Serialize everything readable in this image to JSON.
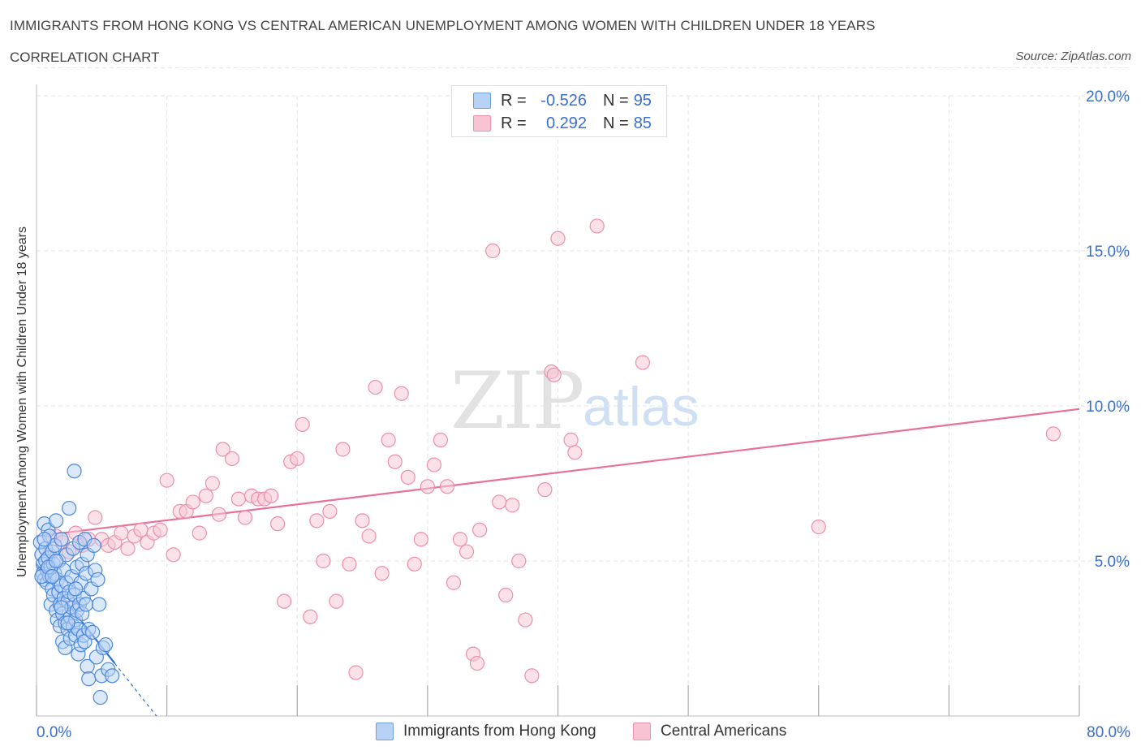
{
  "title": "IMMIGRANTS FROM HONG KONG VS CENTRAL AMERICAN UNEMPLOYMENT AMONG WOMEN WITH CHILDREN UNDER 18 YEARS",
  "subtitle": "CORRELATION CHART",
  "source": "Source: ZipAtlas.com",
  "watermark": {
    "zip": "ZIP",
    "atlas": "atlas"
  },
  "legend_top": [
    {
      "label": "R =",
      "r": "-0.526",
      "n_label": "N =",
      "n": "95",
      "fill": "#b8d2f5",
      "stroke": "#6f9fe0"
    },
    {
      "label": "R =",
      "r": "0.292",
      "n_label": "N =",
      "n": "85",
      "fill": "#f8c4d4",
      "stroke": "#ee93ae"
    }
  ],
  "colors": {
    "blue_fill": "#b8d2f5",
    "blue_stroke": "#4a88dc",
    "blue_line": "#2f6fd6",
    "pink_fill": "#f8c8d6",
    "pink_stroke": "#ec8fac",
    "pink_line": "#e8709a",
    "tick_color": "#3a6fd1",
    "grid": "#e4e4e4"
  },
  "chart_data": {
    "type": "scatter",
    "title": "IMMIGRANTS FROM HONG KONG VS CENTRAL AMERICAN UNEMPLOYMENT AMONG WOMEN WITH CHILDREN UNDER 18 YEARS",
    "xlabel": "",
    "ylabel": "Unemployment Among Women with Children Under 18 years",
    "xlim": [
      0,
      80
    ],
    "ylim": [
      0,
      20
    ],
    "x_tick_labels": [
      "0.0%",
      "80.0%"
    ],
    "y_ticks": [
      5,
      10,
      15,
      20
    ],
    "y_tick_labels": [
      "5.0%",
      "10.0%",
      "15.0%",
      "20.0%"
    ],
    "grid": true,
    "series": [
      {
        "name": "Immigrants from Hong Kong",
        "R": -0.526,
        "N": 95,
        "trend": {
          "x": [
            0,
            6.0
          ],
          "y": [
            4.9,
            1.7
          ]
        },
        "trend_dashed": {
          "x": [
            6.0,
            9.2
          ],
          "y": [
            1.7,
            0.0
          ]
        },
        "points": [
          [
            0.3,
            5.6
          ],
          [
            0.4,
            5.2
          ],
          [
            0.5,
            4.9
          ],
          [
            0.5,
            4.6
          ],
          [
            0.6,
            6.2
          ],
          [
            0.6,
            4.4
          ],
          [
            0.7,
            5.4
          ],
          [
            0.7,
            5.0
          ],
          [
            0.8,
            4.7
          ],
          [
            0.8,
            4.3
          ],
          [
            0.9,
            6.0
          ],
          [
            0.9,
            5.1
          ],
          [
            1.0,
            4.5
          ],
          [
            1.0,
            5.8
          ],
          [
            1.1,
            4.8
          ],
          [
            1.1,
            3.6
          ],
          [
            1.2,
            5.3
          ],
          [
            1.2,
            4.1
          ],
          [
            1.3,
            4.9
          ],
          [
            1.3,
            3.9
          ],
          [
            1.4,
            5.5
          ],
          [
            1.4,
            4.6
          ],
          [
            1.5,
            3.4
          ],
          [
            1.5,
            6.3
          ],
          [
            1.6,
            4.4
          ],
          [
            1.6,
            3.1
          ],
          [
            1.7,
            5.0
          ],
          [
            1.7,
            4.0
          ],
          [
            1.8,
            3.6
          ],
          [
            1.8,
            2.9
          ],
          [
            1.9,
            5.7
          ],
          [
            1.9,
            4.2
          ],
          [
            2.0,
            3.3
          ],
          [
            2.0,
            2.4
          ],
          [
            2.1,
            4.7
          ],
          [
            2.1,
            3.8
          ],
          [
            2.2,
            3.0
          ],
          [
            2.2,
            2.2
          ],
          [
            2.3,
            5.2
          ],
          [
            2.3,
            4.3
          ],
          [
            2.4,
            3.7
          ],
          [
            2.4,
            2.8
          ],
          [
            2.5,
            6.7
          ],
          [
            2.5,
            4.0
          ],
          [
            2.6,
            3.2
          ],
          [
            2.6,
            2.5
          ],
          [
            2.7,
            4.5
          ],
          [
            2.7,
            3.5
          ],
          [
            2.8,
            2.9
          ],
          [
            2.8,
            5.4
          ],
          [
            2.9,
            7.9
          ],
          [
            2.9,
            3.9
          ],
          [
            3.0,
            3.1
          ],
          [
            3.0,
            2.6
          ],
          [
            3.1,
            4.8
          ],
          [
            3.1,
            3.4
          ],
          [
            3.2,
            2.8
          ],
          [
            3.2,
            2.0
          ],
          [
            3.3,
            5.6
          ],
          [
            3.3,
            3.6
          ],
          [
            3.4,
            4.3
          ],
          [
            3.4,
            2.3
          ],
          [
            3.5,
            3.3
          ],
          [
            3.5,
            4.9
          ],
          [
            3.6,
            2.6
          ],
          [
            3.6,
            3.8
          ],
          [
            3.7,
            5.7
          ],
          [
            3.7,
            2.4
          ],
          [
            3.8,
            4.6
          ],
          [
            3.8,
            3.6
          ],
          [
            3.9,
            5.2
          ],
          [
            3.9,
            1.6
          ],
          [
            4.0,
            2.8
          ],
          [
            4.0,
            1.2
          ],
          [
            4.2,
            4.1
          ],
          [
            4.3,
            2.7
          ],
          [
            4.4,
            5.5
          ],
          [
            4.5,
            4.7
          ],
          [
            4.6,
            1.9
          ],
          [
            4.7,
            4.4
          ],
          [
            4.8,
            3.6
          ],
          [
            4.9,
            0.6
          ],
          [
            5.0,
            1.3
          ],
          [
            5.1,
            2.2
          ],
          [
            5.3,
            2.3
          ],
          [
            5.5,
            1.5
          ],
          [
            5.8,
            1.3
          ],
          [
            0.4,
            4.5
          ],
          [
            0.6,
            5.7
          ],
          [
            0.9,
            4.8
          ],
          [
            1.2,
            4.5
          ],
          [
            1.5,
            5.0
          ],
          [
            1.9,
            3.5
          ],
          [
            2.4,
            3.0
          ],
          [
            3.0,
            4.1
          ]
        ]
      },
      {
        "name": "Central Americans",
        "R": 0.292,
        "N": 85,
        "trend": {
          "x": [
            0,
            80
          ],
          "y": [
            5.8,
            9.9
          ]
        },
        "points": [
          [
            1.0,
            5.2
          ],
          [
            1.5,
            5.8
          ],
          [
            2.0,
            5.6
          ],
          [
            2.5,
            5.3
          ],
          [
            3.0,
            5.9
          ],
          [
            3.5,
            5.5
          ],
          [
            4.0,
            5.7
          ],
          [
            4.5,
            6.4
          ],
          [
            5.0,
            5.7
          ],
          [
            5.5,
            5.5
          ],
          [
            6.0,
            5.6
          ],
          [
            6.5,
            5.9
          ],
          [
            7.0,
            5.4
          ],
          [
            7.5,
            5.8
          ],
          [
            8.0,
            6.0
          ],
          [
            8.5,
            5.6
          ],
          [
            9.0,
            5.9
          ],
          [
            9.5,
            6.0
          ],
          [
            10.0,
            7.6
          ],
          [
            10.5,
            5.2
          ],
          [
            11.0,
            6.6
          ],
          [
            11.5,
            6.6
          ],
          [
            12.0,
            6.9
          ],
          [
            12.5,
            5.9
          ],
          [
            13.0,
            7.1
          ],
          [
            13.5,
            7.5
          ],
          [
            14.0,
            6.5
          ],
          [
            14.3,
            8.6
          ],
          [
            15.0,
            8.3
          ],
          [
            15.5,
            7.0
          ],
          [
            16.0,
            6.4
          ],
          [
            16.5,
            7.1
          ],
          [
            17.0,
            7.0
          ],
          [
            17.5,
            7.0
          ],
          [
            18.0,
            7.1
          ],
          [
            18.5,
            6.2
          ],
          [
            19.0,
            3.7
          ],
          [
            19.5,
            8.2
          ],
          [
            20.0,
            8.3
          ],
          [
            20.4,
            9.4
          ],
          [
            21.0,
            3.2
          ],
          [
            21.5,
            6.3
          ],
          [
            22.0,
            5.0
          ],
          [
            22.5,
            6.6
          ],
          [
            23.0,
            3.7
          ],
          [
            23.5,
            8.6
          ],
          [
            24.0,
            4.9
          ],
          [
            24.5,
            1.4
          ],
          [
            25.0,
            6.3
          ],
          [
            25.5,
            5.8
          ],
          [
            26.0,
            10.6
          ],
          [
            26.5,
            4.6
          ],
          [
            27.0,
            8.9
          ],
          [
            27.5,
            8.2
          ],
          [
            28.0,
            10.4
          ],
          [
            28.5,
            7.7
          ],
          [
            29.0,
            4.9
          ],
          [
            29.5,
            5.7
          ],
          [
            30.0,
            7.4
          ],
          [
            30.5,
            8.1
          ],
          [
            31.0,
            8.9
          ],
          [
            31.5,
            7.4
          ],
          [
            32.0,
            4.3
          ],
          [
            32.5,
            5.7
          ],
          [
            33.0,
            5.3
          ],
          [
            33.5,
            2.0
          ],
          [
            33.8,
            1.7
          ],
          [
            34.0,
            6.0
          ],
          [
            35.0,
            15.0
          ],
          [
            35.5,
            6.9
          ],
          [
            36.0,
            3.9
          ],
          [
            36.5,
            6.8
          ],
          [
            37.0,
            5.0
          ],
          [
            37.5,
            3.1
          ],
          [
            38.0,
            1.3
          ],
          [
            39.0,
            7.3
          ],
          [
            39.5,
            11.1
          ],
          [
            40.0,
            15.4
          ],
          [
            41.0,
            8.9
          ],
          [
            41.3,
            8.5
          ],
          [
            43.0,
            15.8
          ],
          [
            46.5,
            11.4
          ],
          [
            60.0,
            6.1
          ],
          [
            78.0,
            9.1
          ],
          [
            39.7,
            11.0
          ]
        ]
      }
    ]
  },
  "bottom_legend": [
    {
      "label": "Immigrants from Hong Kong",
      "fill": "#b8d2f5",
      "stroke": "#6f9fe0"
    },
    {
      "label": "Central Americans",
      "fill": "#f8c4d4",
      "stroke": "#ee93ae"
    }
  ]
}
